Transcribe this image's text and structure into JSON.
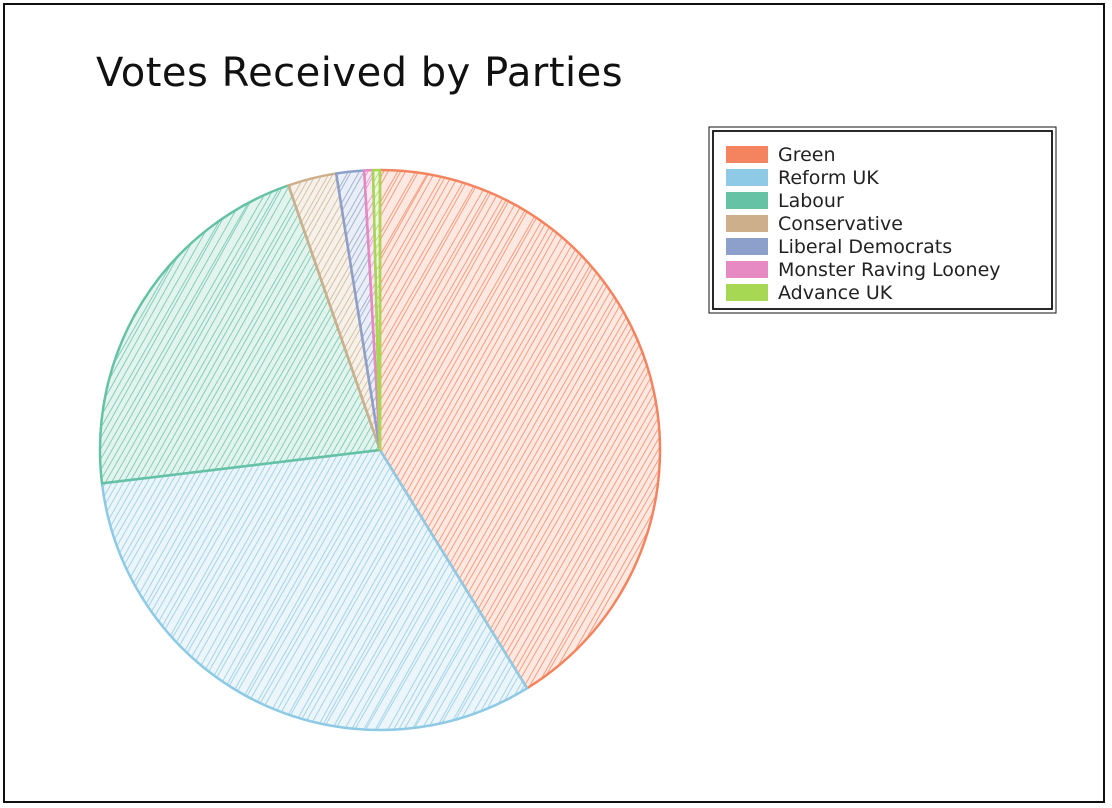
{
  "chart_data": {
    "type": "pie",
    "title": "Votes Received by Parties",
    "slices": [
      {
        "label": "Green",
        "value": 41.2,
        "color": "#f4845f"
      },
      {
        "label": "Reform UK",
        "value": 31.9,
        "color": "#8ecae6"
      },
      {
        "label": "Labour",
        "value": 21.6,
        "color": "#66c2a5"
      },
      {
        "label": "Conservative",
        "value": 2.8,
        "color": "#cdb08b"
      },
      {
        "label": "Liberal Democrats",
        "value": 1.6,
        "color": "#8da0cb"
      },
      {
        "label": "Monster Raving Looney",
        "value": 0.5,
        "color": "#e78ac3"
      },
      {
        "label": "Advance UK",
        "value": 0.4,
        "color": "#a6d854"
      }
    ],
    "legend_position": "top-right",
    "style": "hand-drawn hatched"
  }
}
